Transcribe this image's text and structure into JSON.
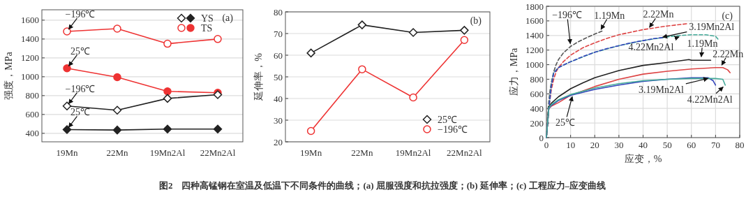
{
  "chart_data": [
    {
      "type": "line",
      "ylabel": "强度，MPa",
      "categories": [
        "19Mn",
        "22Mn",
        "19Mn2Al",
        "22Mn2Al"
      ],
      "ylim": [
        310,
        1710
      ],
      "yticks": [
        400,
        600,
        800,
        1000,
        1200,
        1400,
        1600
      ],
      "grid": "y",
      "legend": "top right",
      "series": [
        {
          "name": "YS",
          "color": "#222222",
          "marker": "diamond",
          "values": [
            690,
            645,
            770,
            810
          ]
        },
        {
          "color": "#222222",
          "marker": "diamond",
          "values": [
            440,
            435,
            445,
            445
          ]
        },
        {
          "name": "TS",
          "color": "#ee3333",
          "marker": "circle",
          "values": [
            1480,
            1510,
            1350,
            1400
          ]
        },
        {
          "color": "#ee3333",
          "marker": "circle",
          "values": [
            1090,
            995,
            845,
            830
          ]
        }
      ],
      "annotations": [
        "(a)",
        {
          "text": "−196℃",
          "x": "19Mn",
          "y": 1480
        },
        {
          "text": "25℃",
          "x": "19Mn",
          "y": 1090
        },
        {
          "text": "−196℃",
          "x": "19Mn",
          "y": 690
        },
        {
          "text": "25℃",
          "x": "19Mn",
          "y": 440
        },
        "图2　四种高锰钢在室温及低温下不同条件的曲线；(a) 屈服强度和抗拉强度；(b) 延伸率；(c) 工程应力–应变曲线"
      ]
    },
    {
      "type": "line",
      "ylabel": "延伸率，%",
      "categories": [
        "19Mn",
        "22Mn",
        "19Mn2Al",
        "22Mn2Al"
      ],
      "ylim": [
        20,
        80
      ],
      "yticks": [
        20,
        30,
        40,
        50,
        60,
        70,
        80
      ],
      "grid": "y",
      "legend": "bottom right",
      "series": [
        {
          "name": "25℃",
          "color": "#222222",
          "marker": "diamond",
          "values": [
            61,
            74,
            70.5,
            71.5
          ]
        },
        {
          "name": "−196℃",
          "color": "#ee3333",
          "marker": "circle",
          "values": [
            25,
            53.5,
            40.5,
            67
          ]
        }
      ],
      "annotations": [
        "(b)"
      ]
    },
    {
      "type": "line",
      "xlabel": "应变，%",
      "ylabel": "应力，MPa",
      "xlim": [
        0,
        80
      ],
      "xticks": [
        0,
        10,
        20,
        30,
        40,
        50,
        60,
        70,
        80
      ],
      "ylim": [
        0,
        1800
      ],
      "yticks": [
        0,
        200,
        400,
        600,
        800,
        1000,
        1200,
        1400,
        1600,
        1800
      ],
      "grid": true,
      "series": [
        {
          "color": "#555555",
          "line_style": "dashed",
          "x": [
            0,
            0.5,
            1,
            1.5,
            2,
            3,
            4,
            5,
            7,
            10,
            13,
            16,
            20,
            23
          ],
          "values": [
            0,
            300,
            500,
            650,
            750,
            900,
            1000,
            1070,
            1160,
            1250,
            1310,
            1360,
            1420,
            1460
          ]
        },
        {
          "color": "#dd4444",
          "line_style": "dashed",
          "x": [
            0,
            1,
            2,
            3,
            4,
            5,
            7,
            10,
            15,
            20,
            25,
            30,
            40,
            50,
            58
          ],
          "values": [
            0,
            400,
            650,
            800,
            900,
            960,
            1040,
            1130,
            1230,
            1300,
            1360,
            1410,
            1480,
            1530,
            1560
          ]
        },
        {
          "color": "#44aa99",
          "line_style": "dashed",
          "x": [
            0,
            1,
            2,
            3,
            5,
            10,
            20,
            30,
            40,
            50,
            55,
            60,
            66,
            70,
            71
          ],
          "values": [
            0,
            420,
            720,
            890,
            960,
            1040,
            1170,
            1260,
            1330,
            1380,
            1400,
            1410,
            1410,
            1390,
            1350
          ]
        },
        {
          "color": "#3344bb",
          "line_style": "dashed",
          "x": [
            0,
            1,
            2,
            3,
            4,
            5,
            8,
            10,
            15,
            20,
            25,
            30,
            35,
            40,
            45,
            48
          ],
          "values": [
            0,
            400,
            700,
            880,
            920,
            960,
            1010,
            1040,
            1110,
            1170,
            1220,
            1260,
            1300,
            1330,
            1360,
            1370
          ]
        },
        {
          "color": "#222222",
          "line_style": "solid",
          "x": [
            0,
            0.5,
            1,
            2,
            5,
            10,
            15,
            20,
            30,
            40,
            50,
            59,
            60,
            68
          ],
          "values": [
            0,
            200,
            420,
            470,
            560,
            670,
            750,
            820,
            920,
            990,
            1030,
            1070,
            1060,
            1060
          ]
        },
        {
          "color": "#dd4444",
          "line_style": "solid",
          "x": [
            0,
            1,
            2,
            5,
            10,
            15,
            20,
            30,
            40,
            50,
            60,
            70,
            73,
            75,
            76
          ],
          "values": [
            0,
            400,
            430,
            480,
            580,
            640,
            700,
            800,
            870,
            910,
            940,
            960,
            960,
            930,
            890
          ]
        },
        {
          "color": "#3344bb",
          "line_style": "solid",
          "x": [
            0,
            1,
            2,
            5,
            10,
            20,
            30,
            40,
            50,
            60,
            67,
            69,
            70
          ],
          "values": [
            0,
            400,
            440,
            510,
            580,
            660,
            720,
            770,
            800,
            820,
            820,
            780,
            720
          ]
        },
        {
          "color": "#44aa99",
          "line_style": "solid",
          "x": [
            0,
            1,
            2,
            5,
            10,
            20,
            30,
            40,
            50,
            60,
            70,
            73,
            74
          ],
          "values": [
            0,
            410,
            450,
            520,
            590,
            680,
            740,
            780,
            800,
            810,
            810,
            800,
            720
          ]
        }
      ],
      "annotations": [
        "(c)",
        {
          "text": "−196℃",
          "x": 10,
          "y": 1250
        },
        {
          "text": "1.19Mn",
          "x": 22,
          "y": 1450
        },
        {
          "text": "2.22Mn",
          "x": 42,
          "y": 1480
        },
        {
          "text": "3.19Mn2Al",
          "x": 47,
          "y": 1370
        },
        {
          "text": "4.22Mn2Al",
          "x": 56,
          "y": 1395
        },
        {
          "text": "1.19Mn",
          "x": 64,
          "y": 1070
        },
        {
          "text": "2.22Mn",
          "x": 72,
          "y": 960
        },
        {
          "text": "3.19Mn2Al",
          "x": 68,
          "y": 820
        },
        {
          "text": "4.22Mn2Al",
          "x": 74,
          "y": 720
        },
        {
          "text": "25℃",
          "x": 11,
          "y": 600
        }
      ]
    }
  ]
}
